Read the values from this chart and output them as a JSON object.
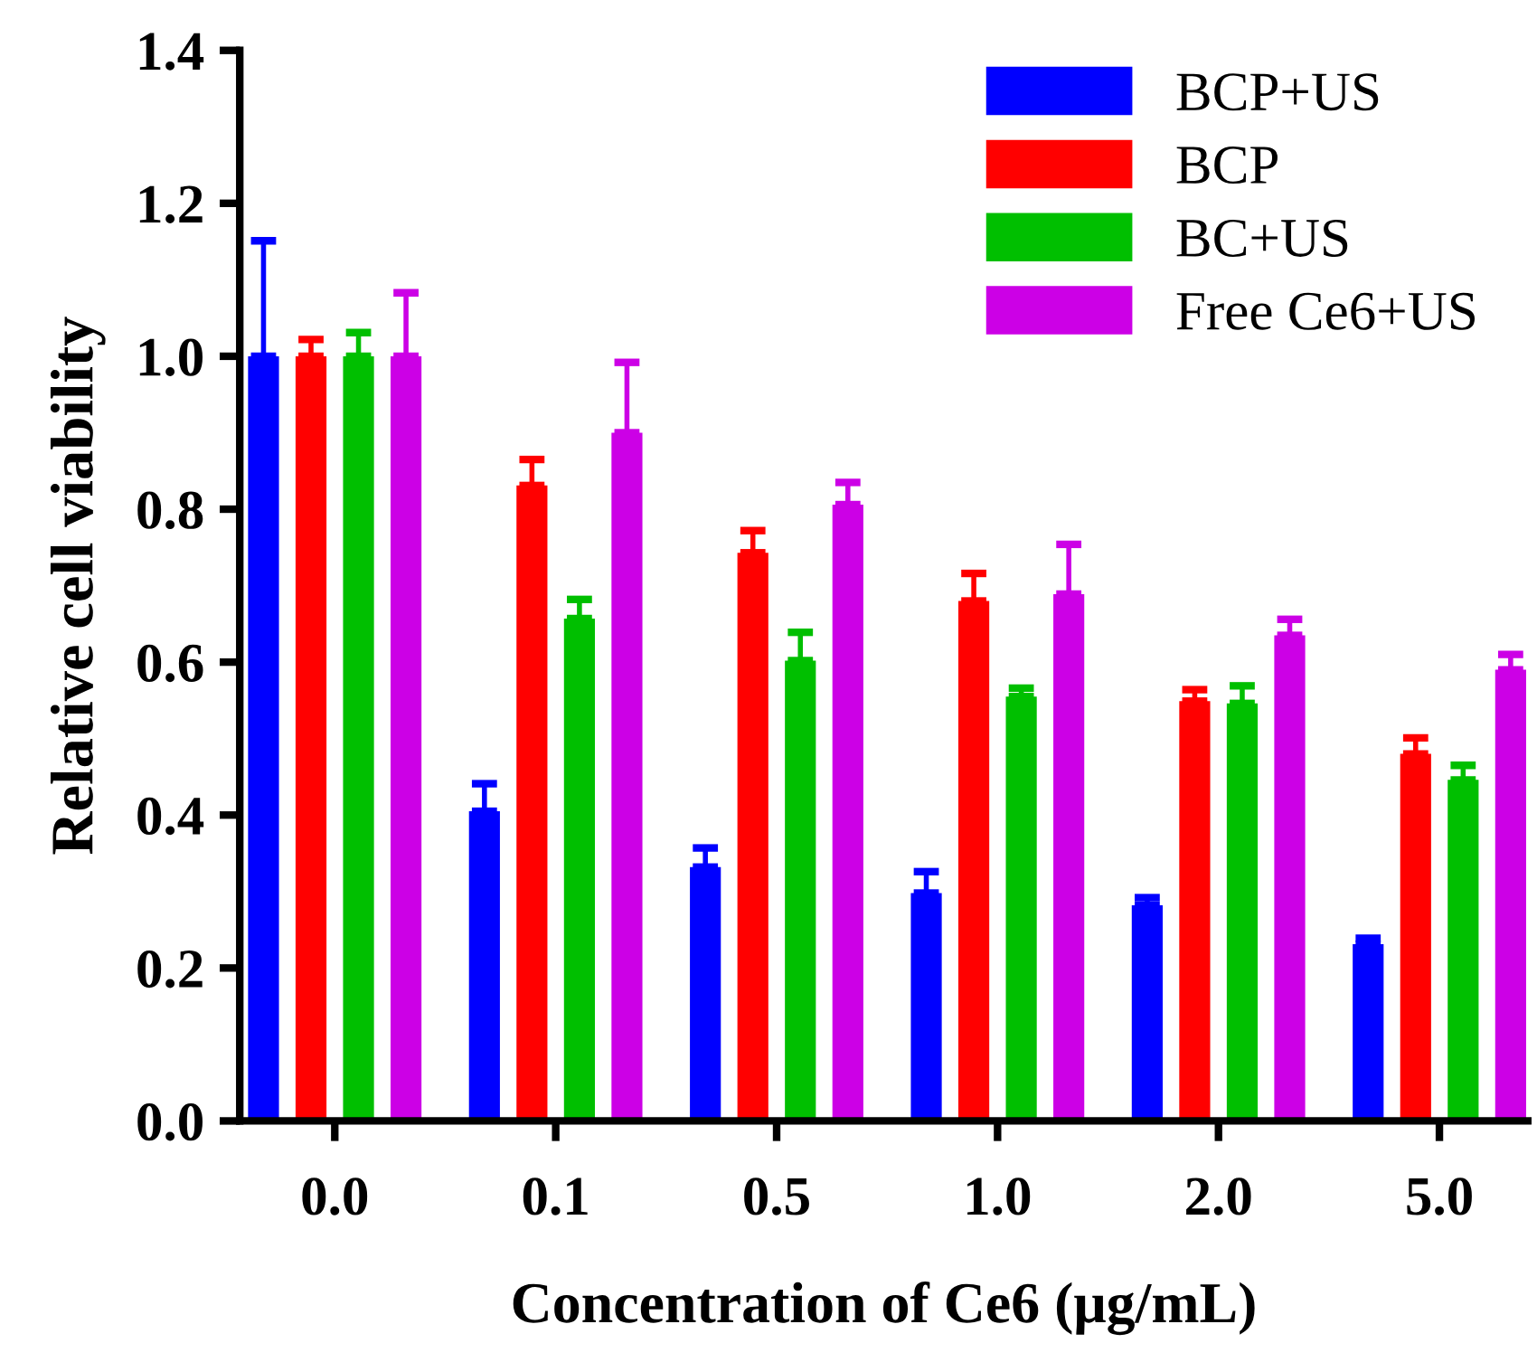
{
  "chart_data": {
    "type": "bar",
    "xlabel": "Concentration of Ce6 (μg/mL)",
    "ylabel": "Relative cell viability",
    "categories": [
      "0.0",
      "0.1",
      "0.5",
      "1.0",
      "2.0",
      "5.0"
    ],
    "series": [
      {
        "name": "BCP+US",
        "color": "#0000ff",
        "values": [
          1.0,
          0.405,
          0.332,
          0.298,
          0.282,
          0.231
        ],
        "errors": [
          [
            1.0,
            1.151
          ],
          [
            0.405,
            0.441
          ],
          [
            0.332,
            0.357
          ],
          [
            0.298,
            0.326
          ],
          [
            0.282,
            0.292
          ],
          [
            0.231,
            0.239
          ]
        ]
      },
      {
        "name": "BCP",
        "color": "#ff0000",
        "values": [
          1.0,
          0.831,
          0.743,
          0.68,
          0.549,
          0.48
        ],
        "errors": [
          [
            1.0,
            1.022
          ],
          [
            0.831,
            0.865
          ],
          [
            0.743,
            0.772
          ],
          [
            0.68,
            0.716
          ],
          [
            0.549,
            0.564
          ],
          [
            0.48,
            0.501
          ]
        ]
      },
      {
        "name": "BC+US",
        "color": "#00bf00",
        "values": [
          1.0,
          0.657,
          0.602,
          0.555,
          0.546,
          0.446
        ],
        "errors": [
          [
            1.0,
            1.031
          ],
          [
            0.657,
            0.682
          ],
          [
            0.602,
            0.639
          ],
          [
            0.555,
            0.566
          ],
          [
            0.546,
            0.569
          ],
          [
            0.446,
            0.465
          ]
        ]
      },
      {
        "name": "Free Ce6+US",
        "color": "#cc00e6",
        "values": [
          1.0,
          0.9,
          0.806,
          0.689,
          0.635,
          0.59
        ],
        "errors": [
          [
            1.0,
            1.083
          ],
          [
            0.9,
            0.992
          ],
          [
            0.806,
            0.835
          ],
          [
            0.689,
            0.754
          ],
          [
            0.635,
            0.656
          ],
          [
            0.59,
            0.61
          ]
        ]
      }
    ],
    "ylim": [
      0,
      1.4
    ],
    "yticks": [
      {
        "value": 0,
        "label": "0.0"
      },
      {
        "value": 0.2,
        "label": "0.2"
      },
      {
        "value": 0.4,
        "label": "0.4"
      },
      {
        "value": 0.6,
        "label": "0.6"
      },
      {
        "value": 0.8,
        "label": "0.8"
      },
      {
        "value": 1.0,
        "label": "1.0"
      },
      {
        "value": 1.2,
        "label": "1.2"
      },
      {
        "value": 1.4,
        "label": "1.4"
      }
    ],
    "grid": false,
    "legend": "top right"
  }
}
